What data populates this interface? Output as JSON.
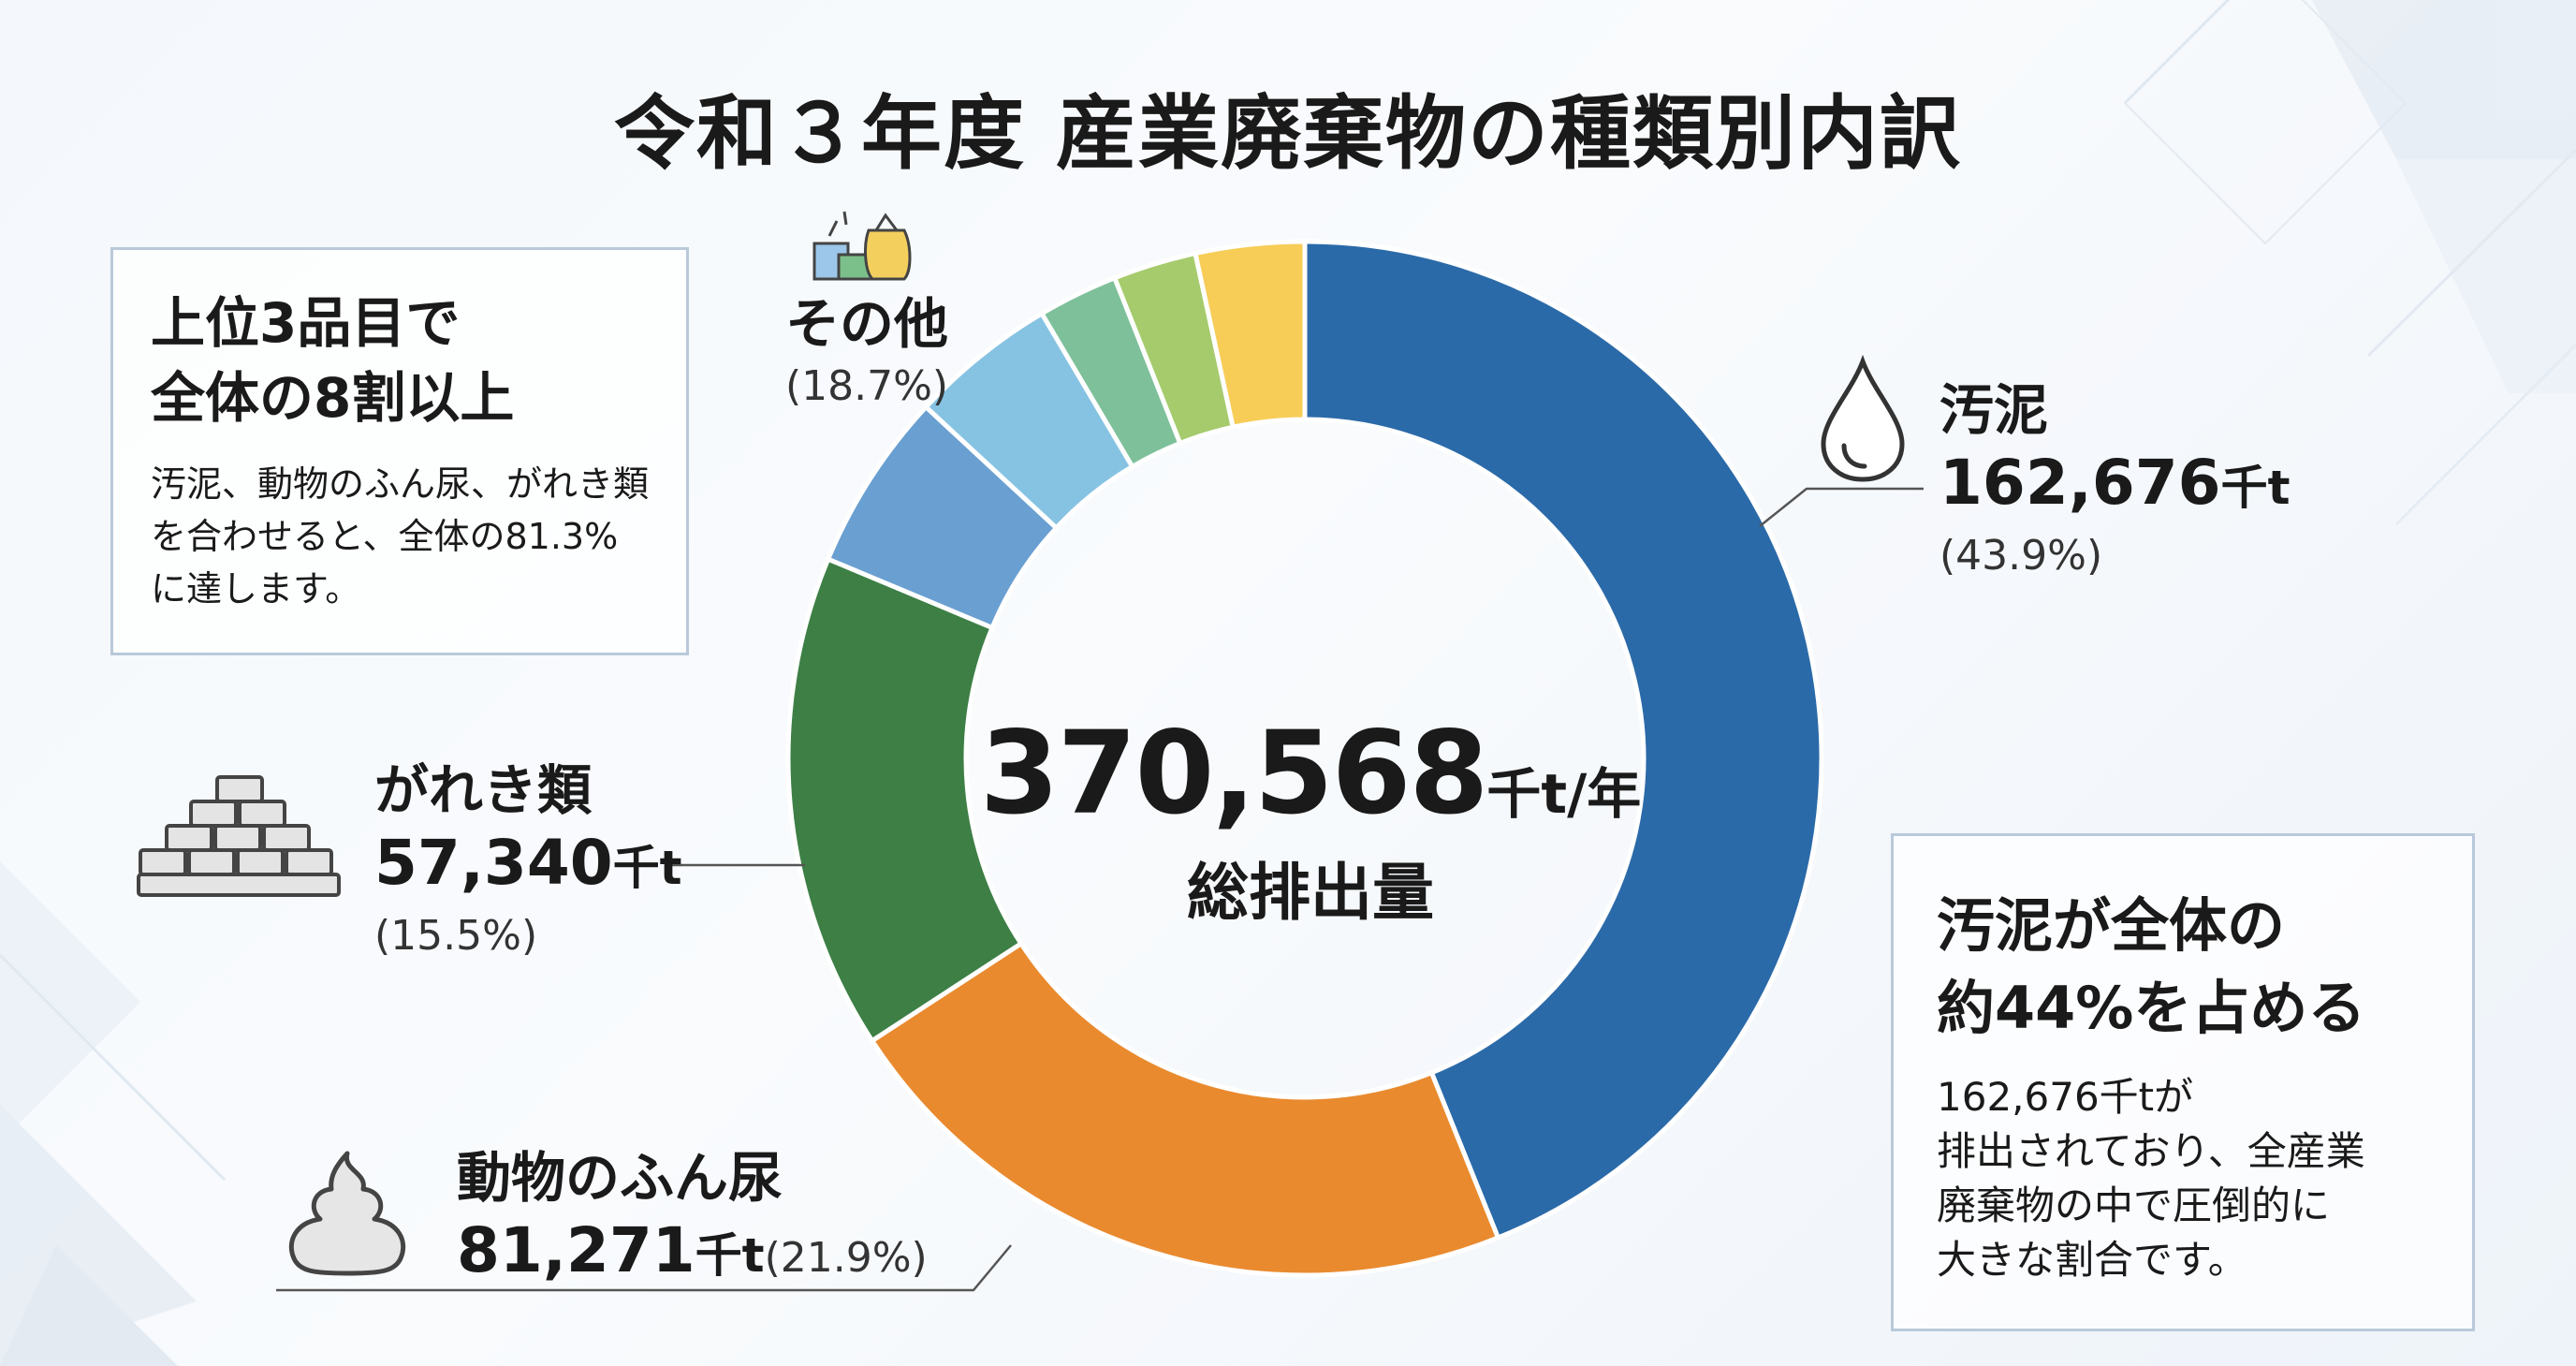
{
  "title": "令和３年度 産業廃棄物の種類別内訳",
  "colors": {
    "sludge": "#2b6aa8",
    "manure": "#e98a2e",
    "debris": "#3d7f45",
    "other1": "#6a9fd1",
    "other2": "#86c3e3",
    "other3": "#7ec09a",
    "other4": "#a6cb6d",
    "other5": "#f7cd58"
  },
  "center": {
    "value": "370,568",
    "unit": "千t/年",
    "label": "総排出量"
  },
  "labels": {
    "sludge": {
      "name": "汚泥",
      "value": "162,676",
      "unit": "千t",
      "pct": "(43.9%)"
    },
    "debris": {
      "name": "がれき類",
      "value": "57,340",
      "unit": "千t",
      "pct": "(15.5%)"
    },
    "manure": {
      "name": "動物のふん尿",
      "value": "81,271",
      "unit": "千t",
      "pct": "(21.9%)"
    },
    "other": {
      "name": "その他",
      "pct": "(18.7%)"
    }
  },
  "callout_left": {
    "title_line1": "上位3品目で",
    "title_line2": "全体の8割以上",
    "text_line1": "汚泥、動物のふん尿、がれき類",
    "text_line2": "を合わせると、全体の81.3%",
    "text_line3": "に達します。"
  },
  "callout_right": {
    "title_line1": "汚泥が全体の",
    "title_line2": "約44%を占める",
    "text_line1": "162,676千tが",
    "text_line2": "排出されており、全産業",
    "text_line3": "廃棄物の中で圧倒的に",
    "text_line4": "大きな割合です。"
  },
  "chart_data": {
    "type": "pie",
    "title": "令和３年度 産業廃棄物の種類別内訳",
    "total": 370568,
    "unit": "千t",
    "categories": [
      "汚泥",
      "動物のふん尿",
      "がれき類",
      "その他"
    ],
    "values": [
      162676,
      81271,
      57340,
      69281
    ],
    "percentages": [
      43.9,
      21.9,
      15.5,
      18.7
    ],
    "other_breakdown_pct": [
      5.6,
      4.6,
      2.5,
      2.6,
      3.4
    ]
  }
}
